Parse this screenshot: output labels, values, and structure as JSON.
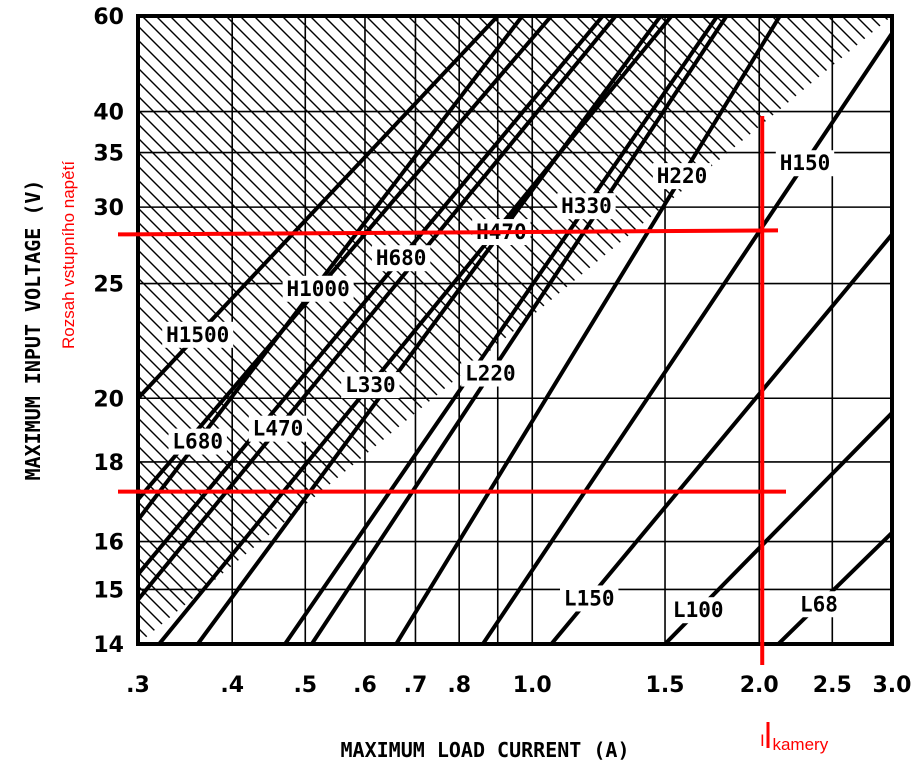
{
  "chart_data": {
    "type": "line",
    "xlabel": "MAXIMUM LOAD CURRENT (A)",
    "ylabel": "MAXIMUM INPUT VOLTAGE (V)",
    "x_scale": "log",
    "y_scale": "reciprocal",
    "xlim": [
      0.3,
      3.0
    ],
    "ylim": [
      14,
      60
    ],
    "x_ticks": [
      {
        "v": 0.3,
        "label": ".3"
      },
      {
        "v": 0.4,
        "label": ".4"
      },
      {
        "v": 0.5,
        "label": ".5"
      },
      {
        "v": 0.6,
        "label": ".6"
      },
      {
        "v": 0.7,
        "label": ".7"
      },
      {
        "v": 0.8,
        "label": ".8"
      },
      {
        "v": 1.0,
        "label": "1.0"
      },
      {
        "v": 1.5,
        "label": "1.5"
      },
      {
        "v": 2.0,
        "label": "2.0"
      },
      {
        "v": 2.5,
        "label": "2.5"
      },
      {
        "v": 3.0,
        "label": "3.0"
      }
    ],
    "x_grid": [
      0.3,
      0.4,
      0.5,
      0.6,
      0.7,
      0.8,
      0.9,
      1.0,
      1.5,
      2.0,
      2.5,
      3.0
    ],
    "y_ticks": [
      {
        "v": 60,
        "label": "60"
      },
      {
        "v": 40,
        "label": "40"
      },
      {
        "v": 35,
        "label": "35"
      },
      {
        "v": 30,
        "label": "30"
      },
      {
        "v": 25,
        "label": "25"
      },
      {
        "v": 20,
        "label": "20"
      },
      {
        "v": 18,
        "label": "18"
      },
      {
        "v": 16,
        "label": "16"
      },
      {
        "v": 15,
        "label": "15"
      },
      {
        "v": 14,
        "label": "14"
      }
    ],
    "y_grid": [
      14,
      15,
      16,
      18,
      20,
      25,
      30,
      35,
      40,
      60
    ],
    "grid": true,
    "hatched_region": "H-series limits (upper area)",
    "series": [
      {
        "name": "H1500",
        "points": [
          [
            0.3,
            20.0
          ],
          [
            0.9,
            60
          ]
        ]
      },
      {
        "name": "H1000",
        "points": [
          [
            0.3,
            17.0
          ],
          [
            1.06,
            60
          ]
        ]
      },
      {
        "name": "H680",
        "points": [
          [
            0.3,
            15.3
          ],
          [
            1.24,
            60
          ]
        ]
      },
      {
        "name": "H470",
        "points": [
          [
            0.36,
            14.0
          ],
          [
            1.48,
            60
          ]
        ]
      },
      {
        "name": "H330",
        "points": [
          [
            0.47,
            14.0
          ],
          [
            1.76,
            60
          ]
        ]
      },
      {
        "name": "H220",
        "points": [
          [
            0.66,
            14.0
          ],
          [
            2.13,
            60
          ]
        ]
      },
      {
        "name": "H150",
        "points": [
          [
            0.86,
            14.0
          ],
          [
            3.0,
            55
          ]
        ]
      },
      {
        "name": "L680",
        "points": [
          [
            0.3,
            16.5
          ],
          [
            0.97,
            60
          ]
        ]
      },
      {
        "name": "L470",
        "points": [
          [
            0.3,
            14.8
          ],
          [
            1.29,
            60
          ]
        ]
      },
      {
        "name": "L330",
        "points": [
          [
            0.32,
            14.0
          ],
          [
            1.53,
            60
          ]
        ]
      },
      {
        "name": "L220",
        "points": [
          [
            0.51,
            14.0
          ],
          [
            1.81,
            60
          ]
        ]
      },
      {
        "name": "L150",
        "points": [
          [
            1.06,
            14.0
          ],
          [
            3.0,
            28.0
          ]
        ]
      },
      {
        "name": "L100",
        "points": [
          [
            1.5,
            14.0
          ],
          [
            3.0,
            19.5
          ]
        ]
      },
      {
        "name": "L68",
        "points": [
          [
            2.12,
            14.0
          ],
          [
            3.0,
            16.2
          ]
        ]
      }
    ],
    "annotations": {
      "voltage_range_label": "Rozsah vstupního napětí",
      "voltage_range": [
        17.2,
        28.0
      ],
      "current_label_main": "I",
      "current_label_sub": "kamery",
      "current_marker": 2.0,
      "color": "#ff0000"
    }
  }
}
